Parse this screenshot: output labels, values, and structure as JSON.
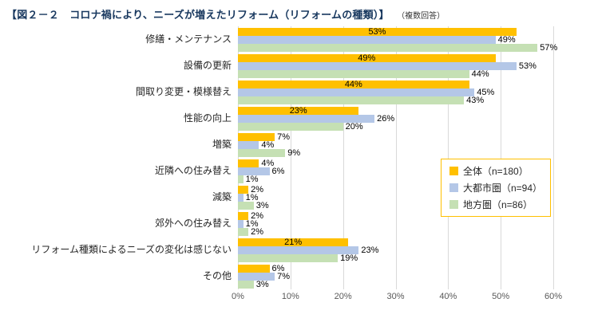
{
  "title": "【図２－２　コロナ禍により、ニーズが増えたリフォーム（リフォームの種類）】",
  "subtitle": "（複数回答）",
  "chart_data": {
    "type": "bar",
    "orientation": "horizontal",
    "title": "コロナ禍により、ニーズが増えたリフォーム（リフォームの種類）",
    "categories": [
      "修繕・メンテナンス",
      "設備の更新",
      "間取り変更・模様替え",
      "性能の向上",
      "増築",
      "近隣への住み替え",
      "減築",
      "郊外への住み替え",
      "リフォーム種類によるニーズの変化は感じない",
      "その他"
    ],
    "series": [
      {
        "name": "全体（n=180）",
        "color": "#FFC000",
        "values": [
          53,
          49,
          44,
          23,
          7,
          4,
          2,
          2,
          21,
          6
        ]
      },
      {
        "name": "大都市圏（n=94）",
        "color": "#B4C7E7",
        "values": [
          49,
          53,
          45,
          26,
          4,
          6,
          1,
          1,
          23,
          7
        ]
      },
      {
        "name": "地方圏（n=86）",
        "color": "#C5E0B4",
        "values": [
          57,
          44,
          43,
          20,
          9,
          1,
          3,
          2,
          19,
          3
        ]
      }
    ],
    "xlim": [
      0,
      60
    ],
    "xticks": [
      "0%",
      "10%",
      "20%",
      "30%",
      "40%",
      "50%",
      "60%"
    ],
    "value_label_format": "{v}%",
    "grid": "vertical",
    "legend_position": "middle-right"
  }
}
